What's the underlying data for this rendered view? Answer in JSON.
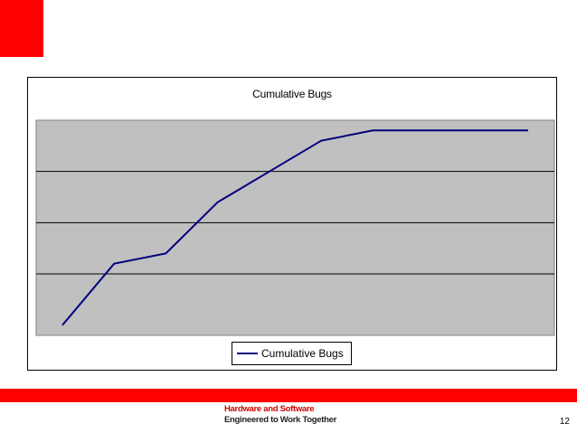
{
  "colors": {
    "accent": "#ff0000",
    "plot_background": "#c0c0c0",
    "series_line": "#000080",
    "tagline_primary": "#cc0000"
  },
  "chart_data": {
    "type": "line",
    "title": "Cumulative Bugs",
    "xlabel": "",
    "ylabel": "",
    "x": [
      1,
      2,
      3,
      4,
      5,
      6,
      7,
      8,
      9,
      10
    ],
    "series": [
      {
        "name": "Cumulative Bugs",
        "values": [
          0,
          1.2,
          1.4,
          2.4,
          3.0,
          3.6,
          3.8,
          3.8,
          3.8,
          3.8
        ]
      }
    ],
    "ylim": [
      -0.2,
      4.0
    ],
    "grid": true,
    "legend": "bottom"
  },
  "footer": {
    "tagline_line1": "Hardware and Software",
    "tagline_line2": "Engineered to Work Together",
    "page_number": "12"
  }
}
